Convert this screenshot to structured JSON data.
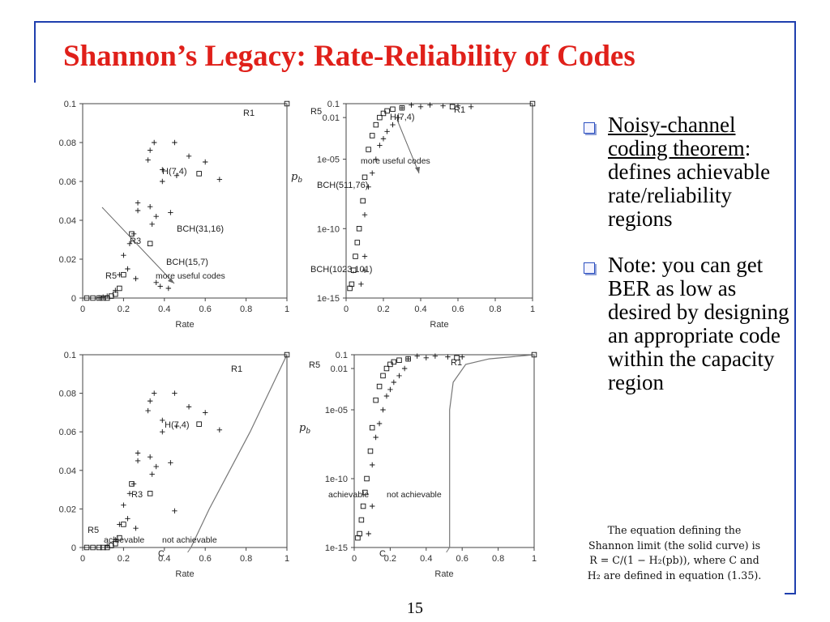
{
  "title": "Shannon’s Legacy: Rate-Reliability of Codes",
  "bullets": [
    {
      "lead": "Noisy-channel coding theorem",
      "rest": ": defines achievable rate/reliability regions"
    },
    {
      "lead": "",
      "rest": "Note: you can get BER as low as desired by designing an appropriate code within the capacity region"
    }
  ],
  "caption": {
    "line1": "The equation defining the",
    "line2": "Shannon limit (the solid curve) is",
    "line3": "R = C/(1 − H₂(pb)), where C and",
    "line4": "H₂ are defined in equation (1.35)."
  },
  "page_number": "15",
  "colors": {
    "title": "#e0201a",
    "frame": "#1f3fae",
    "bullet_box": "#2b4fc0"
  },
  "chart_data": [
    {
      "type": "scatter",
      "position": "top-left",
      "xlabel": "Rate",
      "ylabel": "",
      "xlim": [
        0,
        1
      ],
      "ylim": [
        0,
        0.1
      ],
      "x_ticks": [
        "0",
        "0.2",
        "0.4",
        "0.6",
        "0.8",
        "1"
      ],
      "y_ticks": [
        "0",
        "0.02",
        "0.04",
        "0.06",
        "0.08",
        "0.1"
      ],
      "series": [
        {
          "marker": "square",
          "points": [
            [
              1.0,
              0.1
            ],
            [
              0.57,
              0.064
            ],
            [
              0.24,
              0.033
            ],
            [
              0.33,
              0.028
            ],
            [
              0.18,
              0.005
            ],
            [
              0.14,
              0.001
            ],
            [
              0.02,
              0
            ],
            [
              0.05,
              0
            ],
            [
              0.08,
              0
            ],
            [
              0.1,
              0
            ],
            [
              0.12,
              0
            ],
            [
              0.16,
              0.002
            ],
            [
              0.2,
              0.012
            ]
          ]
        },
        {
          "marker": "plus",
          "points": [
            [
              0.35,
              0.08
            ],
            [
              0.45,
              0.08
            ],
            [
              0.33,
              0.076
            ],
            [
              0.52,
              0.073
            ],
            [
              0.32,
              0.071
            ],
            [
              0.39,
              0.066
            ],
            [
              0.46,
              0.063
            ],
            [
              0.6,
              0.07
            ],
            [
              0.67,
              0.061
            ],
            [
              0.39,
              0.06
            ],
            [
              0.27,
              0.049
            ],
            [
              0.33,
              0.047
            ],
            [
              0.27,
              0.045
            ],
            [
              0.36,
              0.042
            ],
            [
              0.43,
              0.044
            ],
            [
              0.34,
              0.038
            ],
            [
              0.25,
              0.033
            ],
            [
              0.23,
              0.028
            ],
            [
              0.2,
              0.022
            ],
            [
              0.22,
              0.015
            ],
            [
              0.18,
              0.012
            ],
            [
              0.26,
              0.01
            ],
            [
              0.36,
              0.008
            ],
            [
              0.38,
              0.006
            ],
            [
              0.42,
              0.005
            ],
            [
              0.16,
              0.004
            ],
            [
              0.12,
              0.001
            ],
            [
              0.1,
              0.0005
            ],
            [
              0.08,
              0.0002
            ]
          ]
        }
      ],
      "annotations": [
        "R1",
        "H(7,4)",
        "BCH(31,16)",
        "R3",
        "BCH(15,7)",
        "R5",
        "more useful codes"
      ]
    },
    {
      "type": "scatter",
      "position": "top-right",
      "xlabel": "Rate",
      "ylabel": "pb",
      "log_y": true,
      "xlim": [
        0,
        1
      ],
      "ylim": [
        "1e-15",
        "0.1"
      ],
      "x_ticks": [
        "0",
        "0.2",
        "0.4",
        "0.6",
        "0.8",
        "1"
      ],
      "y_ticks": [
        "1e-15",
        "1e-10",
        "1e-05",
        "0.01",
        "0.1"
      ],
      "series": [
        {
          "marker": "square",
          "points": [
            [
              1.0,
              0.1
            ],
            [
              0.57,
              0.06
            ],
            [
              0.3,
              0.05
            ],
            [
              0.25,
              0.04
            ],
            [
              0.22,
              0.03
            ],
            [
              0.2,
              0.02
            ],
            [
              0.18,
              0.01
            ],
            [
              0.16,
              0.003
            ],
            [
              0.14,
              0.0005
            ],
            [
              0.12,
              5e-05
            ],
            [
              0.1,
              5e-07
            ],
            [
              0.09,
              1e-08
            ],
            [
              0.07,
              1e-10
            ],
            [
              0.06,
              1e-11
            ],
            [
              0.05,
              1e-12
            ],
            [
              0.04,
              1e-13
            ],
            [
              0.03,
              1e-14
            ],
            [
              0.02,
              5e-15
            ]
          ]
        },
        {
          "marker": "plus",
          "points": [
            [
              0.35,
              0.08
            ],
            [
              0.45,
              0.08
            ],
            [
              0.52,
              0.07
            ],
            [
              0.6,
              0.07
            ],
            [
              0.67,
              0.06
            ],
            [
              0.4,
              0.06
            ],
            [
              0.3,
              0.05
            ],
            [
              0.28,
              0.01
            ],
            [
              0.25,
              0.003
            ],
            [
              0.22,
              0.001
            ],
            [
              0.2,
              0.0003
            ],
            [
              0.18,
              0.0001
            ],
            [
              0.16,
              1e-05
            ],
            [
              0.14,
              1e-06
            ],
            [
              0.12,
              1e-07
            ],
            [
              0.1,
              1e-09
            ],
            [
              0.1,
              1e-12
            ],
            [
              0.1,
              1e-13
            ],
            [
              0.08,
              1e-14
            ]
          ]
        }
      ],
      "annotations": [
        "R1",
        "R5",
        "H(7,4)",
        "BCH(511,76)",
        "BCH(1023,101)",
        "more useful codes"
      ]
    },
    {
      "type": "scatter",
      "position": "bottom-left",
      "xlabel": "Rate",
      "ylabel": "",
      "xlim": [
        0,
        1
      ],
      "ylim": [
        0,
        0.1
      ],
      "x_ticks": [
        "0",
        "0.2",
        "0.4",
        "0.6",
        "0.8",
        "1"
      ],
      "y_ticks": [
        "0",
        "0.02",
        "0.04",
        "0.06",
        "0.08",
        "0.1"
      ],
      "series": [
        {
          "marker": "square",
          "points": [
            [
              1.0,
              0.1
            ],
            [
              0.57,
              0.064
            ],
            [
              0.24,
              0.033
            ],
            [
              0.33,
              0.028
            ],
            [
              0.18,
              0.005
            ],
            [
              0.14,
              0.001
            ],
            [
              0.02,
              0
            ],
            [
              0.05,
              0
            ],
            [
              0.08,
              0
            ],
            [
              0.1,
              0
            ],
            [
              0.12,
              0
            ],
            [
              0.16,
              0.002
            ],
            [
              0.2,
              0.012
            ]
          ]
        },
        {
          "marker": "plus",
          "points": [
            [
              0.35,
              0.08
            ],
            [
              0.45,
              0.08
            ],
            [
              0.33,
              0.076
            ],
            [
              0.52,
              0.073
            ],
            [
              0.32,
              0.071
            ],
            [
              0.39,
              0.066
            ],
            [
              0.46,
              0.063
            ],
            [
              0.6,
              0.07
            ],
            [
              0.67,
              0.061
            ],
            [
              0.39,
              0.06
            ],
            [
              0.27,
              0.049
            ],
            [
              0.33,
              0.047
            ],
            [
              0.27,
              0.045
            ],
            [
              0.36,
              0.042
            ],
            [
              0.43,
              0.044
            ],
            [
              0.34,
              0.038
            ],
            [
              0.25,
              0.033
            ],
            [
              0.23,
              0.028
            ],
            [
              0.2,
              0.022
            ],
            [
              0.22,
              0.015
            ],
            [
              0.18,
              0.012
            ],
            [
              0.26,
              0.01
            ],
            [
              0.45,
              0.019
            ],
            [
              0.16,
              0.004
            ],
            [
              0.12,
              0.001
            ]
          ]
        }
      ],
      "curve": [
        [
          0.53,
          0
        ],
        [
          0.62,
          0.02
        ],
        [
          0.72,
          0.04
        ],
        [
          0.82,
          0.06
        ],
        [
          0.91,
          0.08
        ],
        [
          1.0,
          0.1
        ]
      ],
      "annotations": [
        "R1",
        "H(7,4)",
        "R3",
        "R5",
        "achievable",
        "not achievable",
        "C"
      ]
    },
    {
      "type": "scatter",
      "position": "bottom-right",
      "xlabel": "Rate",
      "ylabel": "pb",
      "log_y": true,
      "xlim": [
        0,
        1
      ],
      "ylim": [
        "1e-15",
        "0.1"
      ],
      "x_ticks": [
        "0",
        "0.2",
        "0.4",
        "0.6",
        "0.8",
        "1"
      ],
      "y_ticks": [
        "1e-15",
        "1e-10",
        "1e-05",
        "0.01",
        "0.1"
      ],
      "series": [
        {
          "marker": "square",
          "points": [
            [
              1.0,
              0.1
            ],
            [
              0.57,
              0.06
            ],
            [
              0.3,
              0.05
            ],
            [
              0.25,
              0.04
            ],
            [
              0.22,
              0.03
            ],
            [
              0.2,
              0.02
            ],
            [
              0.18,
              0.01
            ],
            [
              0.16,
              0.003
            ],
            [
              0.14,
              0.0005
            ],
            [
              0.12,
              5e-05
            ],
            [
              0.1,
              5e-07
            ],
            [
              0.09,
              1e-08
            ],
            [
              0.07,
              1e-10
            ],
            [
              0.06,
              1e-11
            ],
            [
              0.05,
              1e-12
            ],
            [
              0.04,
              1e-13
            ],
            [
              0.03,
              1e-14
            ],
            [
              0.02,
              5e-15
            ]
          ]
        },
        {
          "marker": "plus",
          "points": [
            [
              0.35,
              0.08
            ],
            [
              0.45,
              0.08
            ],
            [
              0.52,
              0.07
            ],
            [
              0.6,
              0.07
            ],
            [
              0.4,
              0.06
            ],
            [
              0.3,
              0.05
            ],
            [
              0.28,
              0.01
            ],
            [
              0.25,
              0.003
            ],
            [
              0.22,
              0.001
            ],
            [
              0.2,
              0.0003
            ],
            [
              0.18,
              0.0001
            ],
            [
              0.16,
              1e-05
            ],
            [
              0.14,
              1e-06
            ],
            [
              0.12,
              1e-07
            ],
            [
              0.1,
              1e-09
            ],
            [
              0.1,
              1e-12
            ],
            [
              0.08,
              1e-14
            ]
          ]
        }
      ],
      "curve_logy": [
        [
          0.53,
          1e-15
        ],
        [
          0.53,
          1e-05
        ],
        [
          0.55,
          0.001
        ],
        [
          0.62,
          0.02
        ],
        [
          0.75,
          0.05
        ],
        [
          1.0,
          0.1
        ]
      ],
      "annotations": [
        "R5",
        "R1",
        "achievable",
        "not achievable",
        "C"
      ]
    }
  ]
}
